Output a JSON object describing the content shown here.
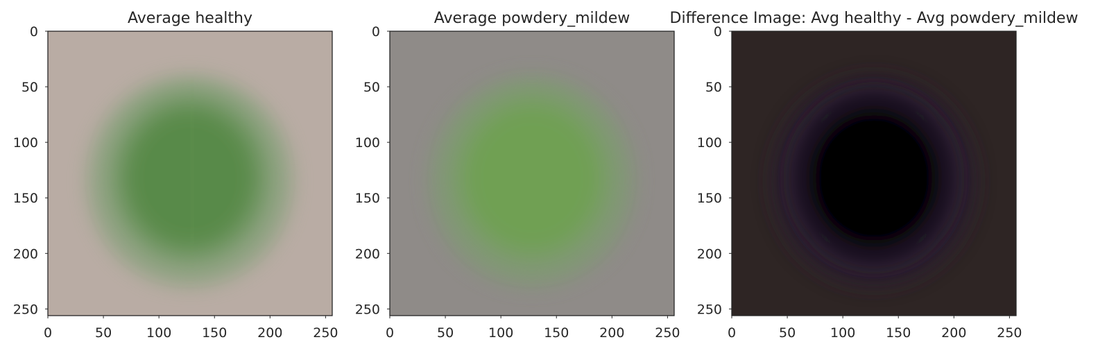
{
  "chart_data": [
    {
      "type": "heatmap",
      "title": "Average healthy",
      "xlim": [
        0,
        256
      ],
      "ylim": [
        256,
        0
      ],
      "xticks": [
        0,
        50,
        100,
        150,
        200,
        250
      ],
      "yticks": [
        0,
        50,
        100,
        150,
        200,
        250
      ],
      "colors": {
        "background": "#b9aca4",
        "mid": "#86a07a",
        "leaf": "#598a48",
        "vein": "#78a05a"
      }
    },
    {
      "type": "heatmap",
      "title": "Average powdery_mildew",
      "xlim": [
        0,
        256
      ],
      "ylim": [
        256,
        0
      ],
      "xticks": [
        0,
        50,
        100,
        150,
        200,
        250
      ],
      "yticks": [
        0,
        50,
        100,
        150,
        200,
        250
      ],
      "colors": {
        "background": "#8f8b88",
        "mid": "#7f9a72",
        "leaf": "#6fa052",
        "vein": "#6fa052"
      }
    },
    {
      "type": "heatmap",
      "title": "Difference Image: Avg healthy - Avg powdery_mildew",
      "xlim": [
        0,
        256
      ],
      "ylim": [
        256,
        0
      ],
      "xticks": [
        0,
        50,
        100,
        150,
        200,
        250
      ],
      "yticks": [
        0,
        50,
        100,
        150,
        200,
        250
      ],
      "colors": {
        "background": "#2e2524",
        "mid": "#2a1f33",
        "leaf": "#050306",
        "vein": "#050306"
      }
    }
  ]
}
